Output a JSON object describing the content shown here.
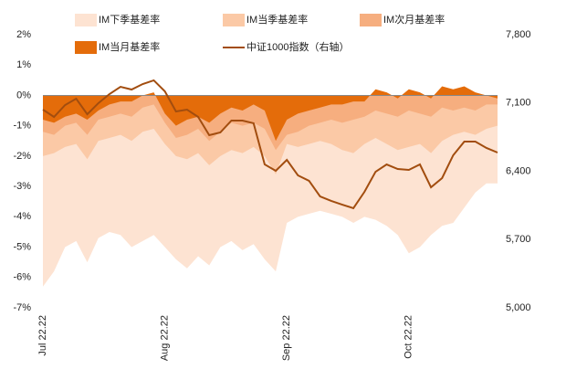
{
  "chart_data": {
    "type": "area_line",
    "categories": [
      "Jul 22.22",
      null,
      null,
      null,
      null,
      null,
      null,
      null,
      null,
      null,
      null,
      "Aug 22.22",
      null,
      null,
      null,
      null,
      null,
      null,
      null,
      null,
      null,
      null,
      "Sep 22.22",
      null,
      null,
      null,
      null,
      null,
      null,
      null,
      null,
      null,
      null,
      "Oct 22.22",
      null,
      null,
      null,
      null,
      null,
      null,
      null,
      null
    ],
    "series": [
      {
        "name": "IM下季基差率",
        "color": "#fde3d2",
        "type": "area",
        "values": [
          -6.3,
          -5.8,
          -5.0,
          -4.8,
          -5.5,
          -4.7,
          -4.5,
          -4.6,
          -5.0,
          -4.8,
          -4.6,
          -5.0,
          -5.4,
          -5.7,
          -5.3,
          -5.6,
          -5.0,
          -4.8,
          -5.1,
          -4.9,
          -5.4,
          -5.8,
          -4.2,
          -4.0,
          -3.9,
          -3.8,
          -3.9,
          -4.0,
          -4.2,
          -4.0,
          -4.1,
          -4.3,
          -4.6,
          -5.2,
          -5.0,
          -4.6,
          -4.3,
          -4.2,
          -3.7,
          -3.2,
          -2.9,
          -2.9
        ]
      },
      {
        "name": "IM当季基差率",
        "color": "#fbc9a6",
        "type": "area",
        "values": [
          -2.0,
          -1.9,
          -1.7,
          -1.6,
          -2.1,
          -1.5,
          -1.4,
          -1.3,
          -1.5,
          -1.2,
          -1.1,
          -1.6,
          -2.0,
          -2.1,
          -1.9,
          -2.3,
          -2.0,
          -1.8,
          -1.9,
          -1.7,
          -2.0,
          -2.6,
          -1.6,
          -1.7,
          -1.6,
          -1.5,
          -1.6,
          -1.8,
          -1.9,
          -1.6,
          -1.4,
          -1.6,
          -1.8,
          -1.7,
          -1.6,
          -1.9,
          -1.5,
          -1.3,
          -1.2,
          -1.3,
          -1.1,
          -1.0
        ]
      },
      {
        "name": "IM次月基差率",
        "color": "#f6ae7f",
        "type": "area",
        "values": [
          -1.2,
          -1.3,
          -1.0,
          -0.9,
          -1.3,
          -0.8,
          -0.7,
          -0.6,
          -0.7,
          -0.4,
          -0.3,
          -0.9,
          -1.4,
          -1.3,
          -1.1,
          -1.5,
          -1.2,
          -0.9,
          -1.0,
          -0.9,
          -1.1,
          -1.8,
          -1.3,
          -1.2,
          -1.0,
          -0.9,
          -0.8,
          -0.9,
          -0.8,
          -0.7,
          -0.5,
          -0.6,
          -0.7,
          -0.5,
          -0.6,
          -0.7,
          -0.4,
          -0.5,
          -0.4,
          -0.5,
          -0.3,
          -0.3
        ]
      },
      {
        "name": "IM当月基差率",
        "color": "#e46c0a",
        "type": "area",
        "values": [
          -0.8,
          -0.9,
          -0.7,
          -0.6,
          -0.8,
          -0.5,
          -0.3,
          -0.2,
          -0.2,
          0.0,
          0.1,
          -0.6,
          -1.0,
          -0.8,
          -0.7,
          -0.9,
          -0.6,
          -0.4,
          -0.5,
          -0.3,
          -0.5,
          -1.5,
          -0.8,
          -0.6,
          -0.5,
          -0.4,
          -0.3,
          -0.3,
          -0.2,
          -0.2,
          0.2,
          0.1,
          -0.1,
          0.2,
          0.1,
          -0.1,
          0.3,
          0.2,
          0.3,
          0.1,
          0.0,
          -0.1
        ]
      },
      {
        "name": "中证1000指数（右轴）",
        "color": "#a24d0f",
        "type": "line",
        "axis": "y2",
        "values": [
          7032,
          6957,
          7079,
          7144,
          6985,
          7098,
          7191,
          7266,
          7238,
          7294,
          7332,
          7219,
          7013,
          7032,
          6957,
          6770,
          6798,
          6920,
          6920,
          6892,
          6470,
          6405,
          6517,
          6358,
          6302,
          6142,
          6096,
          6058,
          6021,
          6189,
          6395,
          6470,
          6423,
          6414,
          6470,
          6236,
          6330,
          6564,
          6704,
          6704,
          6639,
          6592
        ]
      }
    ],
    "ylim": [
      -7,
      2
    ],
    "yticks": [
      {
        "value": 2,
        "label": "2%"
      },
      {
        "value": 1,
        "label": "1%"
      },
      {
        "value": 0,
        "label": "0%"
      },
      {
        "value": -1,
        "label": "-1%"
      },
      {
        "value": -2,
        "label": "-2%"
      },
      {
        "value": -3,
        "label": "-3%"
      },
      {
        "value": -4,
        "label": "-4%"
      },
      {
        "value": -5,
        "label": "-5%"
      },
      {
        "value": -6,
        "label": "-6%"
      },
      {
        "value": -7,
        "label": "-7%"
      }
    ],
    "y2lim": [
      5000,
      7800
    ],
    "y2ticks": [
      {
        "value": 7800,
        "label": "7,800"
      },
      {
        "value": 7100,
        "label": "7,100"
      },
      {
        "value": 6400,
        "label": "6,400"
      },
      {
        "value": 5700,
        "label": "5,700"
      },
      {
        "value": 5000,
        "label": "5,000"
      }
    ],
    "legend": "top",
    "grid": false
  }
}
